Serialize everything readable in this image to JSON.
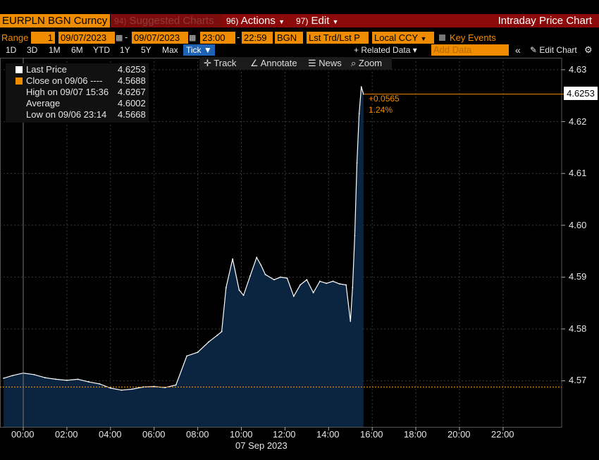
{
  "header": {
    "ticker": "EURPLN BGN Curncy",
    "suggested_num": "94)",
    "suggested_label": "Suggested Charts",
    "actions_num": "96)",
    "actions_label": "Actions",
    "edit_num": "97)",
    "edit_label": "Edit",
    "title": "Intraday Price Chart"
  },
  "range_bar": {
    "range_label": "Range",
    "range_value": "1",
    "start_date": "09/07/2023",
    "end_date": "09/07/2023",
    "start_time": "23:00",
    "end_time": "22:59",
    "source": "BGN",
    "price_field": "Lst Trd/Lst P",
    "currency": "Local CCY",
    "key_events": "Key Events",
    "dash": "-"
  },
  "period_bar": {
    "periods": [
      "1D",
      "3D",
      "1M",
      "6M",
      "YTD",
      "1Y",
      "5Y",
      "Max"
    ],
    "tick_label": "Tick ▼",
    "related_data": "+ Related Data ▾",
    "add_data_placeholder": "Add Data",
    "collapse": "«",
    "edit_chart": "Edit Chart",
    "gear": "⚙"
  },
  "toolbar": {
    "track": "Track",
    "annotate": "Annotate",
    "news": "News",
    "zoom": "Zoom"
  },
  "legend": {
    "last_label": "Last Price",
    "last_value": "4.6253",
    "close_label": "Close on 09/06 ----",
    "close_value": "4.5688",
    "high_label": "High on 09/07 15:36",
    "high_value": "4.6267",
    "avg_label": "Average",
    "avg_value": "4.6002",
    "low_label": "Low on 09/06 23:14",
    "low_value": "4.5668"
  },
  "colors": {
    "accent": "#f08c00",
    "area_fill": "#0b2440",
    "price_line": "#ffffff",
    "header_red": "#8c0a0a"
  },
  "chart_data": {
    "type": "area",
    "title": "Intraday Price Chart",
    "xlabel": "07 Sep 2023",
    "ylabel": "",
    "ylim": [
      4.5595,
      4.6345
    ],
    "yticks": [
      "4.63",
      "4.62",
      "4.61",
      "4.60",
      "4.59",
      "4.58",
      "4.57"
    ],
    "xticks": [
      "00:00",
      "02:00",
      "04:00",
      "06:00",
      "08:00",
      "10:00",
      "12:00",
      "14:00",
      "16:00",
      "18:00",
      "20:00",
      "22:00"
    ],
    "grid": true,
    "legend_position": "top-left",
    "reference_line": {
      "name": "Close on 09/06",
      "value": 4.5688
    },
    "last_price": "4.6253",
    "annotation_change": "+0.0565",
    "annotation_pct": "1.24%",
    "x_hours": [
      -0.9,
      -0.5,
      0,
      0.5,
      1,
      1.5,
      2,
      2.5,
      3,
      3.5,
      4,
      4.5,
      5,
      5.5,
      6,
      6.5,
      7,
      7.5,
      8,
      8.5,
      8.9,
      9.1,
      9.3,
      9.6,
      9.9,
      10.1,
      10.4,
      10.7,
      10.9,
      11.1,
      11.5,
      11.8,
      12.1,
      12.4,
      12.7,
      13,
      13.3,
      13.6,
      13.9,
      14.2,
      14.5,
      14.8,
      15,
      15.1,
      15.2,
      15.3,
      15.4,
      15.5,
      15.6
    ],
    "y_values": [
      4.5705,
      4.571,
      4.5715,
      4.5712,
      4.5706,
      4.5703,
      4.5701,
      4.5703,
      4.5698,
      4.5694,
      4.5686,
      4.5682,
      4.5684,
      4.5688,
      4.5689,
      4.5687,
      4.5692,
      4.5748,
      4.5755,
      4.5775,
      4.5788,
      4.5795,
      4.588,
      4.5935,
      4.5875,
      4.5865,
      4.5902,
      4.5938,
      4.5923,
      4.5905,
      4.5895,
      4.59,
      4.5898,
      4.5863,
      4.5885,
      4.5895,
      4.587,
      4.5892,
      4.5888,
      4.5892,
      4.5887,
      4.5885,
      4.5815,
      4.588,
      4.598,
      4.612,
      4.6215,
      4.6267,
      4.6253
    ]
  },
  "axis": {
    "y_ticks": [
      {
        "label": "4.63",
        "value": 4.63
      },
      {
        "label": "4.62",
        "value": 4.62
      },
      {
        "label": "4.61",
        "value": 4.61
      },
      {
        "label": "4.60",
        "value": 4.6
      },
      {
        "label": "4.59",
        "value": 4.59
      },
      {
        "label": "4.58",
        "value": 4.58
      },
      {
        "label": "4.57",
        "value": 4.57
      }
    ],
    "x_ticks": [
      {
        "label": "00:00",
        "hour": 0
      },
      {
        "label": "02:00",
        "hour": 2
      },
      {
        "label": "04:00",
        "hour": 4
      },
      {
        "label": "06:00",
        "hour": 6
      },
      {
        "label": "08:00",
        "hour": 8
      },
      {
        "label": "10:00",
        "hour": 10
      },
      {
        "label": "12:00",
        "hour": 12
      },
      {
        "label": "14:00",
        "hour": 14
      },
      {
        "label": "16:00",
        "hour": 16
      },
      {
        "label": "18:00",
        "hour": 18
      },
      {
        "label": "20:00",
        "hour": 20
      },
      {
        "label": "22:00",
        "hour": 22
      }
    ],
    "date_label": "07 Sep 2023"
  }
}
